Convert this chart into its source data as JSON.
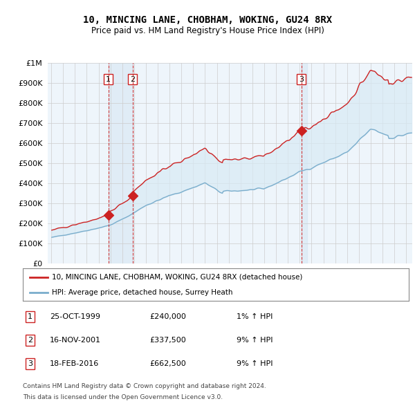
{
  "title": "10, MINCING LANE, CHOBHAM, WOKING, GU24 8RX",
  "subtitle": "Price paid vs. HM Land Registry's House Price Index (HPI)",
  "legend_line1": "10, MINCING LANE, CHOBHAM, WOKING, GU24 8RX (detached house)",
  "legend_line2": "HPI: Average price, detached house, Surrey Heath",
  "footnote1": "Contains HM Land Registry data © Crown copyright and database right 2024.",
  "footnote2": "This data is licensed under the Open Government Licence v3.0.",
  "transactions": [
    {
      "num": 1,
      "date": "25-OCT-1999",
      "price": "£240,000",
      "hpi": "1% ↑ HPI",
      "x": 1999.82
    },
    {
      "num": 2,
      "date": "16-NOV-2001",
      "price": "£337,500",
      "hpi": "9% ↑ HPI",
      "x": 2001.88
    },
    {
      "num": 3,
      "date": "18-FEB-2016",
      "price": "£662,500",
      "hpi": "9% ↑ HPI",
      "x": 2016.13
    }
  ],
  "price_color": "#cc2222",
  "hpi_color": "#7aadcc",
  "shade_color": "#d8eaf5",
  "transaction_color": "#cc2222",
  "grid_color": "#cccccc",
  "ylim": [
    0,
    1000000
  ],
  "xlim": [
    1994.7,
    2025.5
  ],
  "background_color": "#ffffff"
}
